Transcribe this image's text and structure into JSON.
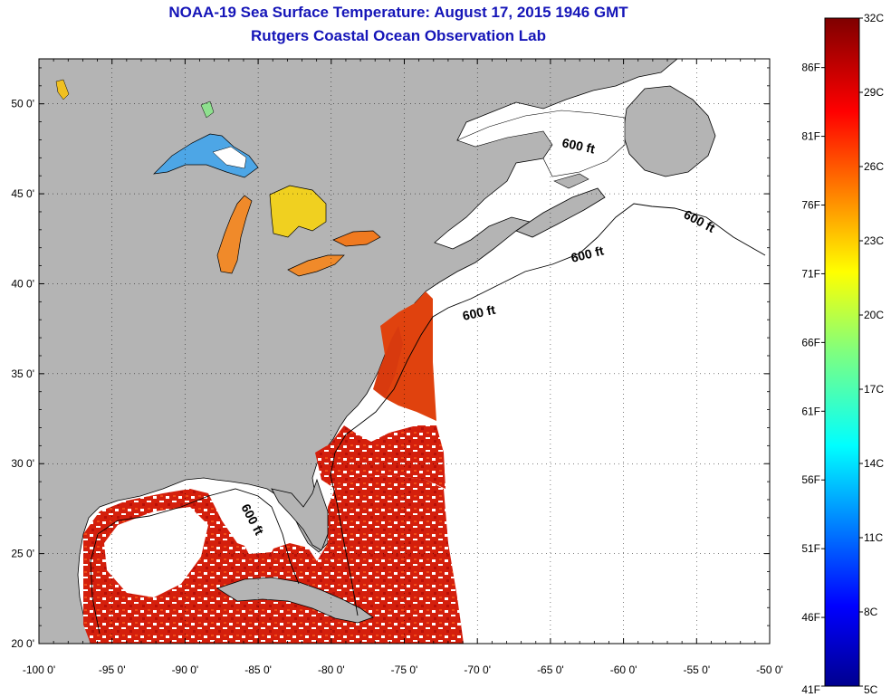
{
  "title": {
    "line1": "NOAA-19 Sea Surface Temperature:  August 17, 2015 1946 GMT",
    "line2": "Rutgers Coastal Ocean Observation Lab"
  },
  "map": {
    "lon_range": [
      -100,
      -50
    ],
    "lat_range": [
      20,
      52.5
    ],
    "lon_labels": [
      "-100 0'",
      "-95 0'",
      "-90 0'",
      "-85 0'",
      "-80 0'",
      "-75 0'",
      "-70 0'",
      "-65 0'",
      "-60 0'",
      "-55 0'",
      "-50 0'"
    ],
    "lat_labels": [
      "20 0'",
      "25 0'",
      "30 0'",
      "35 0'",
      "40 0'",
      "45 0'",
      "50 0'"
    ],
    "contour_label": "600 ft",
    "land_color": "#b4b4b4",
    "no_data_color": "#ffffff"
  },
  "colorbar": {
    "celsius_labels": [
      "32C",
      "29C",
      "26C",
      "23C",
      "20C",
      "17C",
      "14C",
      "11C",
      "8C",
      "5C"
    ],
    "fahrenheit_labels": [
      "86F",
      "81F",
      "76F",
      "71F",
      "66F",
      "61F",
      "56F",
      "51F",
      "46F",
      "41F"
    ],
    "range_c": [
      5,
      32
    ],
    "range_f": [
      41,
      89.6
    ]
  }
}
